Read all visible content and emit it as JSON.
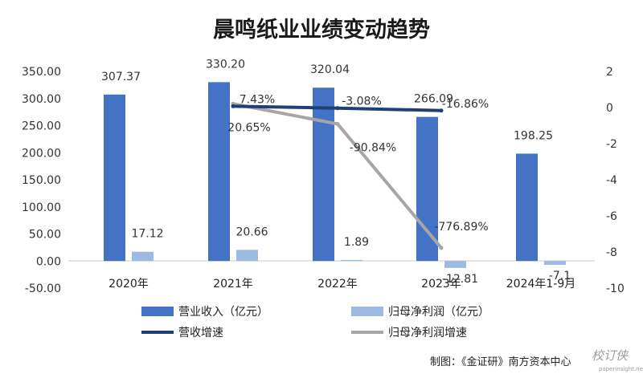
{
  "chart_data": {
    "type": "bar",
    "title": "晨鸣纸业业绩变动趋势",
    "categories": [
      "2020年",
      "2021年",
      "2022年",
      "2023年",
      "2024年1-9月"
    ],
    "series": [
      {
        "name": "营业收入（亿元）",
        "type": "bar",
        "axis": "left",
        "color": "#4472c4",
        "values": [
          307.37,
          330.2,
          320.04,
          266.09,
          198.25
        ],
        "labels": [
          "307.37",
          "330.20",
          "320.04",
          "266.09",
          "198.25"
        ]
      },
      {
        "name": "归母净利润（亿元）",
        "type": "bar",
        "axis": "left",
        "color": "#9dbbe2",
        "values": [
          17.12,
          20.66,
          1.89,
          -12.81,
          -7.1
        ],
        "labels": [
          "17.12",
          "20.66",
          "1.89",
          "-12.81",
          "-7.1"
        ]
      },
      {
        "name": "营收增速",
        "type": "line",
        "axis": "right",
        "color": "#1f3f78",
        "values": [
          null,
          7.43,
          -3.08,
          -16.86,
          null
        ],
        "labels": [
          "",
          "7.43%",
          "-3.08%",
          "-16.86%",
          ""
        ]
      },
      {
        "name": "归母净利润增速",
        "type": "line",
        "axis": "right",
        "color": "#a6a6a6",
        "values": [
          null,
          20.65,
          -90.84,
          -776.89,
          null
        ],
        "labels": [
          "",
          "20.65%",
          "-90.84%",
          "-776.89%",
          ""
        ]
      }
    ],
    "y_left": {
      "min": -50,
      "max": 350,
      "ticks": [
        "-50.00",
        "0.00",
        "50.00",
        "100.00",
        "150.00",
        "200.00",
        "250.00",
        "300.00",
        "350.00"
      ]
    },
    "y_right": {
      "min": -10,
      "max": 2,
      "ticks": [
        "2",
        "0",
        "-2",
        "-4",
        "-6",
        "-8",
        "-10"
      ]
    },
    "grid": false,
    "legend_position": "bottom"
  },
  "credit": "制图：《金证研》南方资本中心",
  "watermark": {
    "text": "校订侠",
    "sub": "paperinsight.net"
  }
}
